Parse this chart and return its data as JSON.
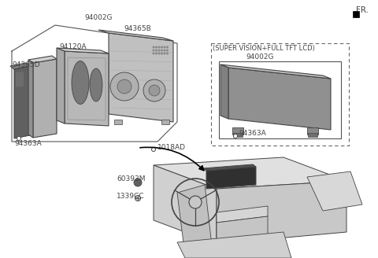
{
  "bg_color": "#ffffff",
  "lc": "#444444",
  "figsize": [
    4.8,
    3.28
  ],
  "dpi": 100,
  "fr_text": "FR.",
  "label_94002G_left": "94002G",
  "label_94365B": "94365B",
  "label_94120A": "94120A",
  "label_94365D": "94365D",
  "label_94363A_left": "94363A",
  "label_1018AD": "1018AD",
  "label_60393M": "60393M",
  "label_1339CC": "1339CC",
  "label_super_vision": "(SUPER VISION+FULL TFT LCD)",
  "label_94002G_right": "94002G",
  "label_94363A_right": "94363A",
  "gray_light": "#c8c8c8",
  "gray_mid": "#aaaaaa",
  "gray_dark": "#666666",
  "gray_darker": "#444444",
  "gray_lens": "#888888"
}
